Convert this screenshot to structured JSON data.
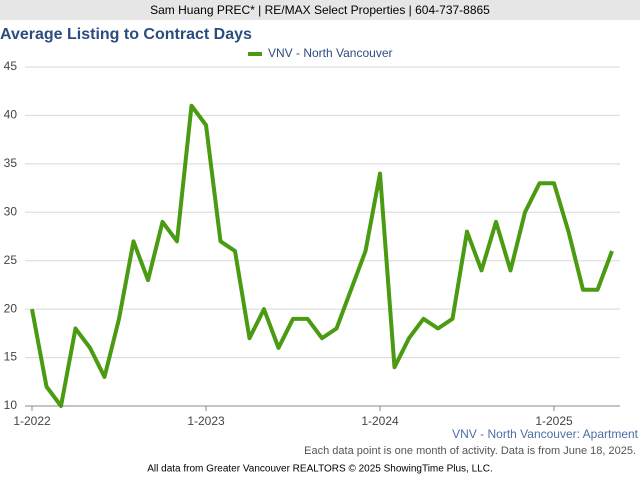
{
  "header": "Sam Huang PREC* | RE/MAX Select Properties | 604-737-8865",
  "chart_data": {
    "type": "line",
    "title": "Average Listing to Contract Days",
    "categories": [
      "1-2022",
      null,
      null,
      null,
      null,
      null,
      null,
      null,
      null,
      null,
      null,
      null,
      "1-2023",
      null,
      null,
      null,
      null,
      null,
      null,
      null,
      null,
      null,
      null,
      null,
      "1-2024",
      null,
      null,
      null,
      null,
      null,
      null,
      null,
      null,
      null,
      null,
      null,
      "1-2025",
      null,
      null,
      null,
      null
    ],
    "series": [
      {
        "name": "VNV - North Vancouver",
        "color": "#4a9a12",
        "values": [
          20,
          12,
          10,
          18,
          16,
          13,
          19,
          27,
          23,
          29,
          27,
          41,
          39,
          27,
          26,
          17,
          20,
          16,
          19,
          19,
          17,
          18,
          22,
          26,
          34,
          14,
          17,
          19,
          18,
          19,
          28,
          24,
          29,
          24,
          30,
          33,
          33,
          28,
          22,
          22,
          26
        ]
      }
    ],
    "ylim": [
      10,
      45
    ],
    "yticks": [
      10,
      15,
      20,
      25,
      30,
      35,
      40,
      45
    ],
    "grid": true,
    "legend": "top",
    "annotations": [
      "VNV - North Vancouver: Apartment",
      "Each data point is one month of activity. Data is from June 18, 2025."
    ]
  },
  "footer": "All data from Greater Vancouver REALTORS © 2025 ShowingTime Plus, LLC."
}
